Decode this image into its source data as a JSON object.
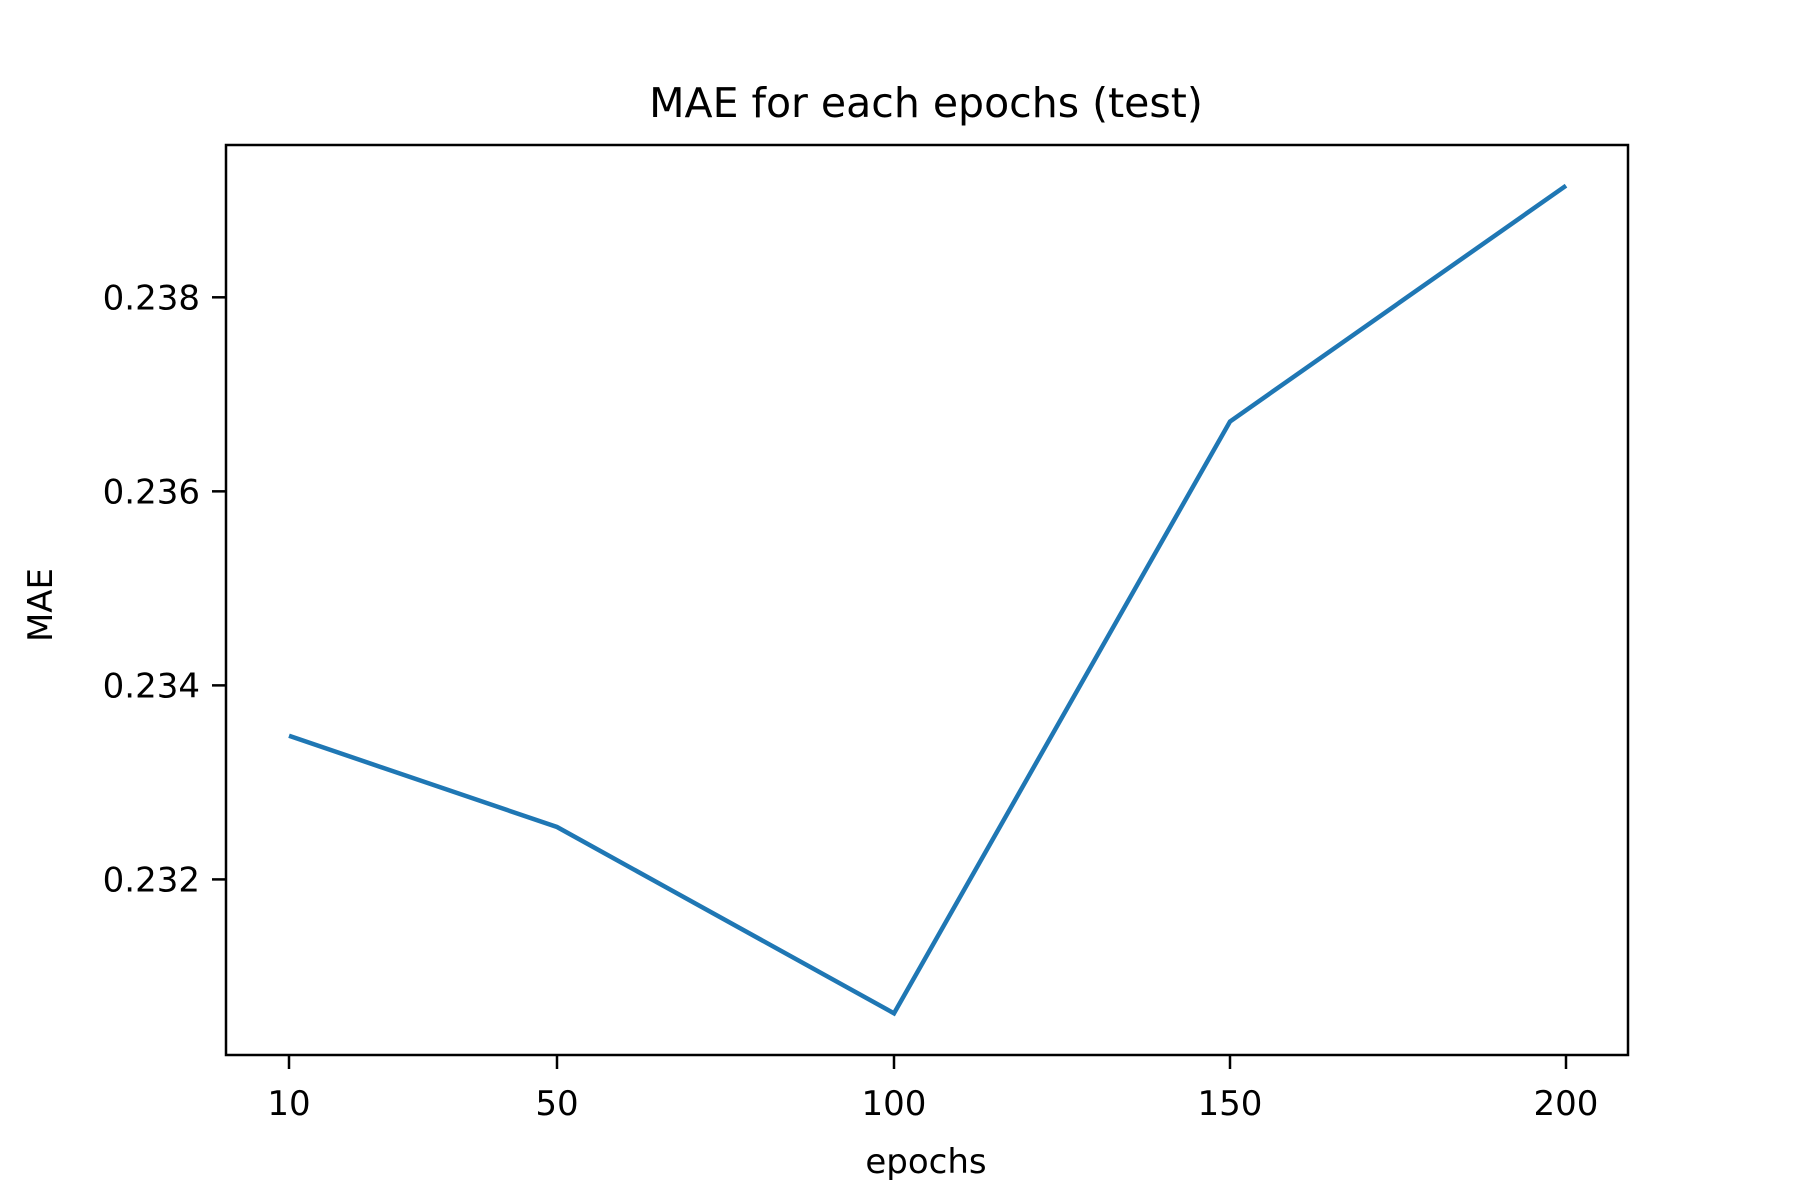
{
  "chart_data": {
    "type": "line",
    "title": "MAE for each epochs (test)",
    "xlabel": "epochs",
    "ylabel": "MAE",
    "x_categories": [
      "10",
      "50",
      "100",
      "150",
      "200"
    ],
    "series": [
      {
        "values": [
          0.23348,
          0.23254,
          0.23062,
          0.23672,
          0.23915
        ],
        "color": "#1f77b4"
      }
    ],
    "yticks": [
      0.232,
      0.234,
      0.236,
      0.238
    ],
    "ytick_labels": [
      "0.232",
      "0.234",
      "0.236",
      "0.238"
    ],
    "ylim": [
      0.23019,
      0.23957
    ],
    "grid": false,
    "legend": "none"
  }
}
